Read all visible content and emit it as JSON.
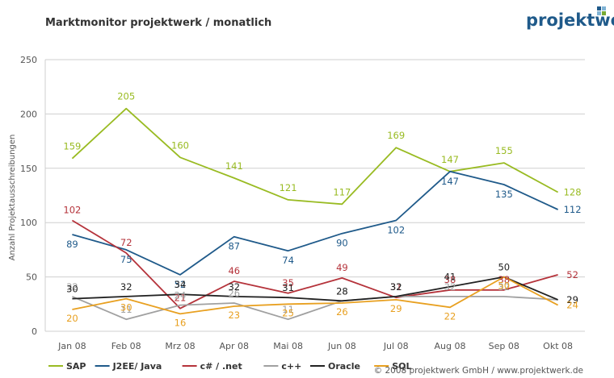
{
  "chart_data": {
    "type": "line",
    "title": "Marktmonitor projektwerk / monatlich",
    "xlabel": "",
    "ylabel": "Anzahl Projektausschreibungen",
    "ylim": [
      0,
      250
    ],
    "yticks": [
      0,
      50,
      100,
      150,
      200,
      250
    ],
    "grid": "horizontal",
    "legend_position": "bottom",
    "categories": [
      "Jan 08",
      "Feb 08",
      "Mrz 08",
      "Apr 08",
      "Mai 08",
      "Jun 08",
      "Jul 08",
      "Aug 08",
      "Sep 08",
      "Okt 08"
    ],
    "series": [
      {
        "name": "SAP",
        "color": "#99bb22",
        "values": [
          159,
          205,
          160,
          141,
          121,
          117,
          169,
          147,
          155,
          128
        ]
      },
      {
        "name": "J2EE/ Java",
        "color": "#1f5a8a",
        "values": [
          89,
          75,
          52,
          87,
          74,
          90,
          102,
          147,
          135,
          112
        ]
      },
      {
        "name": "c# / .net",
        "color": "#b5333b",
        "values": [
          102,
          72,
          21,
          46,
          35,
          49,
          31,
          38,
          38,
          52
        ]
      },
      {
        "name": "c++",
        "color": "#a0a0a0",
        "values": [
          32,
          11,
          24,
          26,
          11,
          28,
          32,
          32,
          32,
          29
        ]
      },
      {
        "name": "Oracle",
        "color": "#222222",
        "values": [
          30,
          32,
          34,
          32,
          31,
          28,
          32,
          41,
          50,
          29
        ]
      },
      {
        "name": "SQL",
        "color": "#e8a020",
        "values": [
          20,
          30,
          16,
          23,
          25,
          26,
          29,
          22,
          50,
          24
        ]
      }
    ]
  },
  "logo": {
    "text": "projektwerk",
    "colors": {
      "dark": "#1f5a8a",
      "light": "#7fb3d5",
      "accent": "#77aa33"
    }
  },
  "footer": {
    "text": "© 2008 projektwerk GmbH / www.projektwerk.de"
  }
}
